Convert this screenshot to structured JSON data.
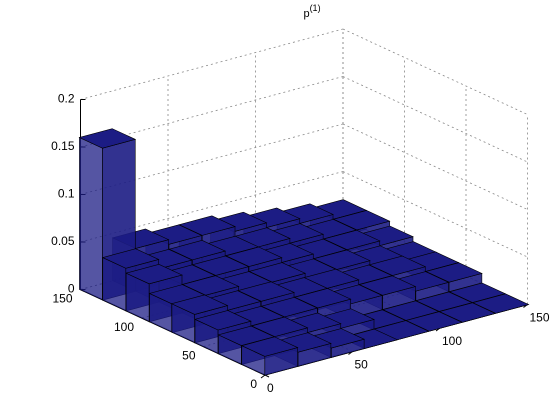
{
  "chart_data": {
    "type": "bar3",
    "title": "p",
    "title_superscript": "(1)",
    "x": [
      9,
      28,
      47,
      66,
      84,
      103,
      122,
      141
    ],
    "y": [
      9,
      28,
      47,
      66,
      84,
      103,
      122,
      141
    ],
    "values": [
      [
        0.02,
        0.015,
        0.01,
        0,
        0,
        0,
        0,
        0
      ],
      [
        0.02,
        0.02,
        0.015,
        0.01,
        0,
        0,
        0,
        0
      ],
      [
        0.025,
        0.02,
        0.02,
        0.02,
        0.015,
        0.015,
        0.01,
        0.01
      ],
      [
        0.03,
        0.025,
        0.025,
        0.02,
        0.02,
        0.015,
        0.015,
        0.01
      ],
      [
        0.03,
        0.03,
        0.025,
        0.025,
        0.02,
        0.02,
        0.015,
        0.01
      ],
      [
        0.04,
        0.03,
        0.03,
        0.03,
        0.025,
        0.02,
        0.02,
        0.015
      ],
      [
        0.045,
        0.035,
        0.035,
        0.03,
        0.03,
        0.025,
        0.02,
        0.02
      ],
      [
        0.16,
        0.045,
        0.04,
        0.04,
        0.035,
        0.03,
        0.025,
        0.02
      ]
    ],
    "color": "#1c1c84",
    "xlim": [
      0,
      150
    ],
    "ylim": [
      0,
      150
    ],
    "zlim": [
      0,
      0.2
    ],
    "xticks": [
      0,
      50,
      100,
      150
    ],
    "yticks": [
      0,
      50,
      100,
      150
    ],
    "zticks": [
      0,
      0.05,
      0.1,
      0.15,
      0.2
    ],
    "grid": true
  }
}
